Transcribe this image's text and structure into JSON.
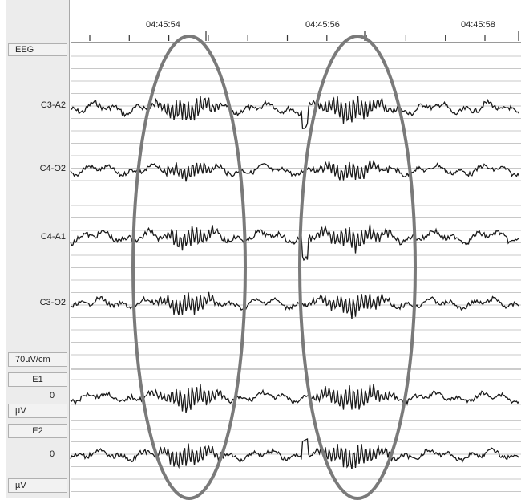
{
  "ruler": {
    "times": [
      "04:45:54",
      "04:45:56",
      "04:45:58"
    ]
  },
  "sidebar": {
    "eeg_header": "EEG",
    "channels": [
      "C3-A2",
      "C4-O2",
      "C4-A1",
      "C3-O2"
    ],
    "scale": "70µV/cm",
    "aux": [
      {
        "name": "E1",
        "zero": "0",
        "unit": "µV"
      },
      {
        "name": "E2",
        "zero": "0",
        "unit": "µV"
      }
    ]
  },
  "colors": {
    "trace": "#1a1a1a",
    "grid": "#c8c8c8",
    "ellipse": "#7a7a7a",
    "panel": "#ececec"
  }
}
